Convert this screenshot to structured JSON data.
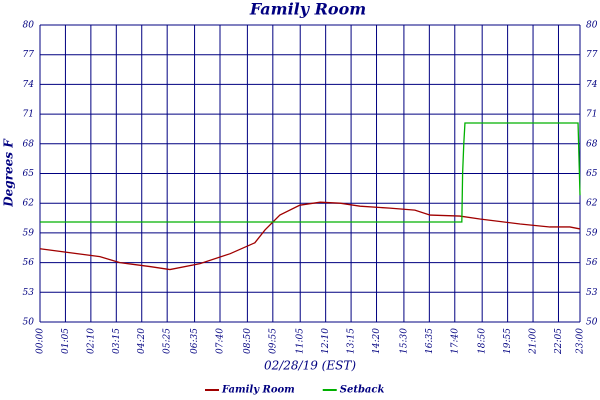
{
  "chart_data": {
    "type": "line",
    "title": "Family Room",
    "xlabel": "02/28/19 (EST)",
    "ylabel": "Degrees F",
    "xlim": [
      0,
      1380
    ],
    "xticks": [
      {
        "value": 0,
        "label": "00:00"
      },
      {
        "value": 65,
        "label": "01:05"
      },
      {
        "value": 130,
        "label": "02:10"
      },
      {
        "value": 195,
        "label": "03:15"
      },
      {
        "value": 260,
        "label": "04:20"
      },
      {
        "value": 325,
        "label": "05:25"
      },
      {
        "value": 395,
        "label": "06:35"
      },
      {
        "value": 460,
        "label": "07:40"
      },
      {
        "value": 530,
        "label": "08:50"
      },
      {
        "value": 595,
        "label": "09:55"
      },
      {
        "value": 665,
        "label": "11:05"
      },
      {
        "value": 730,
        "label": "12:10"
      },
      {
        "value": 795,
        "label": "13:15"
      },
      {
        "value": 860,
        "label": "14:20"
      },
      {
        "value": 930,
        "label": "15:30"
      },
      {
        "value": 995,
        "label": "16:35"
      },
      {
        "value": 1060,
        "label": "17:40"
      },
      {
        "value": 1130,
        "label": "18:50"
      },
      {
        "value": 1195,
        "label": "19:55"
      },
      {
        "value": 1260,
        "label": "21:00"
      },
      {
        "value": 1325,
        "label": "22:05"
      },
      {
        "value": 1380,
        "label": "23:00"
      }
    ],
    "ylim": [
      50,
      80
    ],
    "yticks": [
      50,
      53,
      56,
      59,
      62,
      65,
      68,
      71,
      74,
      77,
      80
    ],
    "grid": true,
    "series": [
      {
        "name": "Family Room",
        "color": "#a00000",
        "x": [
          0,
          153,
          204,
          281,
          332,
          409,
          486,
          549,
          575,
          613,
          664,
          716,
          767,
          818,
          894,
          958,
          997,
          1073,
          1124,
          1227,
          1303,
          1354,
          1380
        ],
        "values": [
          57.4,
          56.6,
          56.0,
          55.6,
          55.3,
          55.9,
          56.9,
          58.0,
          59.3,
          60.8,
          61.8,
          62.1,
          62.0,
          61.7,
          61.5,
          61.3,
          60.8,
          60.7,
          60.4,
          59.9,
          59.6,
          59.6,
          59.4
        ]
      },
      {
        "name": "Setback",
        "color": "#00b000",
        "x": [
          0,
          1078,
          1080,
          1083,
          1086,
          1375,
          1380
        ],
        "values": [
          60.1,
          60.1,
          65,
          68,
          70.1,
          70.1,
          62.8
        ]
      }
    ]
  }
}
